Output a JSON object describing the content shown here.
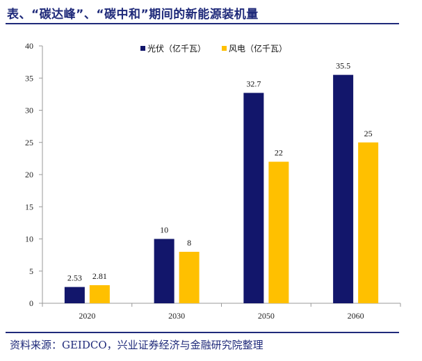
{
  "title": "表、“碳达峰”、“碳中和”期间的新能源装机量",
  "source": "资料来源：GEIDCO，兴业证券经济与金融研究院整理",
  "chart_data": {
    "type": "bar",
    "categories": [
      "2020",
      "2030",
      "2050",
      "2060"
    ],
    "series": [
      {
        "name": "光伏（亿千瓦）",
        "values": [
          2.53,
          10,
          32.7,
          35.5
        ],
        "labels": [
          "2.53",
          "10",
          "32.7",
          "35.5"
        ],
        "color": "#12166b"
      },
      {
        "name": "风电（亿千瓦）",
        "values": [
          2.81,
          8,
          22,
          25
        ],
        "labels": [
          "2.81",
          "8",
          "22",
          "25"
        ],
        "color": "#ffc000"
      }
    ],
    "ylim": [
      0,
      40
    ],
    "yticks": [
      "0",
      "5",
      "10",
      "15",
      "20",
      "25",
      "30",
      "35",
      "40"
    ],
    "legend": "top-center",
    "grid": false
  }
}
